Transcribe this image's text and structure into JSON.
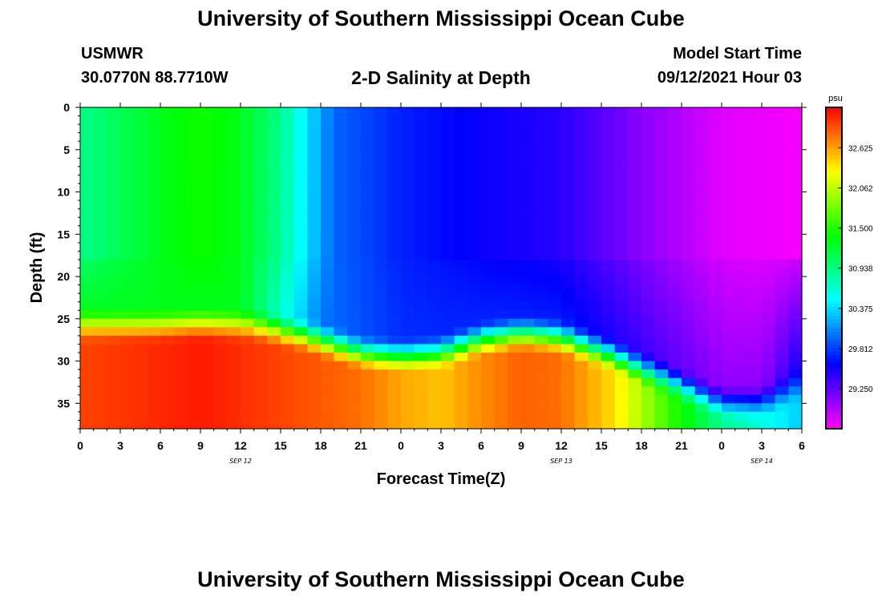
{
  "header": {
    "title": "University of Southern Mississippi Ocean Cube",
    "station": "USMWR",
    "coords": "30.0770N  88.7710W",
    "subtitle": "2-D Salinity at Depth",
    "start_label": "Model Start Time",
    "start_value": "09/12/2021 Hour 03"
  },
  "footer": {
    "title": "University of Southern Mississippi Ocean Cube"
  },
  "chart_data": {
    "type": "heatmap",
    "title": "2-D Salinity at Depth",
    "xlabel": "Forecast Time(Z)",
    "ylabel": "Depth (ft)",
    "x_hours_from_sep12_00z": [
      0,
      54
    ],
    "y_depth_ft": [
      0,
      38
    ],
    "x_ticks": [
      "0",
      "3",
      "6",
      "9",
      "12",
      "15",
      "18",
      "21",
      "0",
      "3",
      "6",
      "9",
      "12",
      "15",
      "18",
      "21",
      "0",
      "3",
      "6"
    ],
    "x_tick_hours": [
      0,
      3,
      6,
      9,
      12,
      15,
      18,
      21,
      24,
      27,
      30,
      33,
      36,
      39,
      42,
      45,
      48,
      51,
      54
    ],
    "date_labels": [
      {
        "text": "SEP 12",
        "hour": 12
      },
      {
        "text": "SEP 13",
        "hour": 36
      },
      {
        "text": "SEP 14",
        "hour": 51
      }
    ],
    "y_ticks": [
      0,
      5,
      10,
      15,
      20,
      25,
      30,
      35
    ],
    "colorbar": {
      "unit": "psu",
      "min": 28.69,
      "max": 33.19,
      "labels": [
        "32.625",
        "32.062",
        "31.500",
        "30.938",
        "30.375",
        "29.812",
        "29.250"
      ],
      "label_values": [
        32.625,
        32.062,
        31.5,
        30.938,
        30.375,
        29.812,
        29.25
      ]
    },
    "surface_salinity_psu": {
      "hours": [
        0,
        6,
        9,
        12,
        15,
        17,
        19,
        24,
        30,
        36,
        42,
        48,
        54
      ],
      "values": [
        30.9,
        31.3,
        31.45,
        31.3,
        30.9,
        30.4,
        29.95,
        29.7,
        29.55,
        29.45,
        29.1,
        28.8,
        28.72
      ]
    },
    "halocline_depth_ft": {
      "hours": [
        0,
        6,
        9,
        13,
        17,
        21,
        24,
        27,
        30,
        33,
        36,
        40,
        44,
        48,
        51,
        54
      ],
      "values": [
        26.5,
        26.5,
        26.3,
        26.5,
        27.8,
        29.8,
        30.2,
        29.8,
        28.2,
        27.5,
        28.0,
        30.2,
        33.0,
        35.8,
        35.8,
        33.5
      ]
    },
    "bottom_salinity_psu": {
      "hours": [
        0,
        9,
        13,
        17,
        21,
        24,
        27,
        30,
        33,
        36,
        40,
        44,
        48,
        54
      ],
      "values": [
        32.95,
        33.1,
        33.0,
        32.9,
        32.8,
        32.6,
        32.5,
        32.7,
        32.85,
        32.8,
        32.4,
        31.6,
        30.9,
        30.3
      ]
    },
    "layer_min_salinity_psu": {
      "hours": [
        0,
        12,
        18,
        24,
        36,
        42,
        48,
        51,
        54
      ],
      "values": [
        31.3,
        31.3,
        30.0,
        29.75,
        29.7,
        29.4,
        29.1,
        29.1,
        29.6
      ]
    }
  }
}
